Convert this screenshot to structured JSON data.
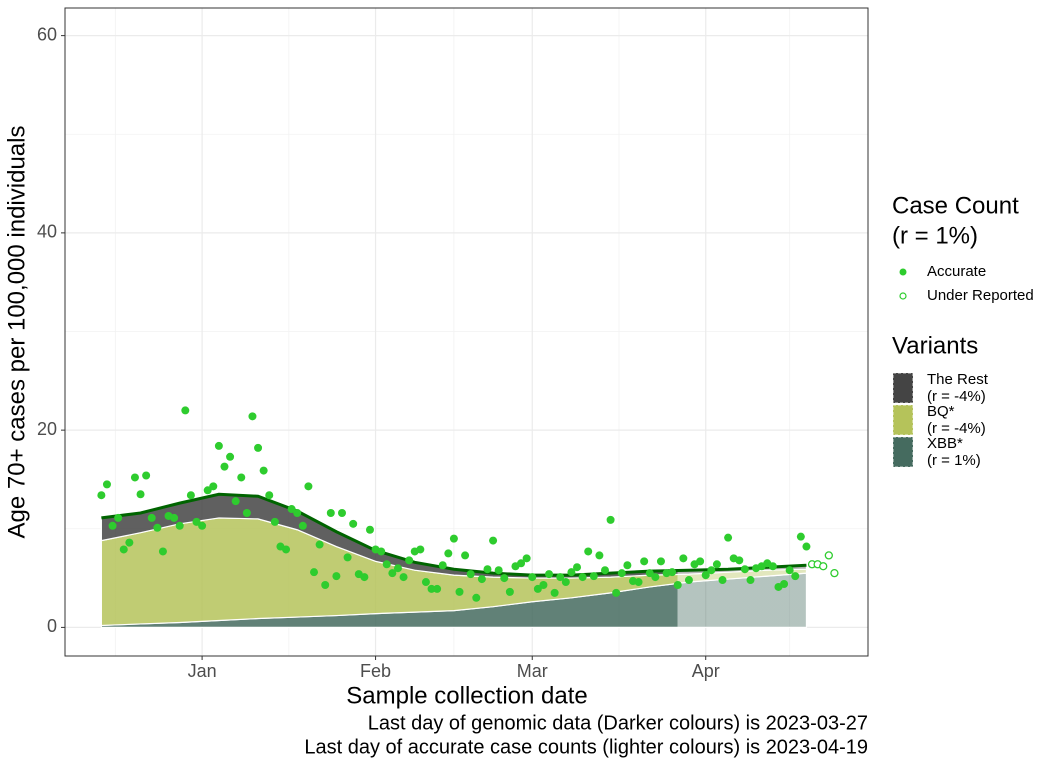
{
  "chart_data": {
    "type": "area",
    "x_label": "Sample collection date",
    "y_label": "Age 70+ cases per 100,000 individuals",
    "captions": [
      "Last day of genomic data (Darker colours) is 2023-03-27",
      "Last day of accurate case counts (lighter colours) is 2023-04-19"
    ],
    "xlim": [
      -24.5,
      119
    ],
    "ylim": [
      -2.9,
      62.8
    ],
    "xticks": [
      {
        "value": 0,
        "label": "Jan"
      },
      {
        "value": 31,
        "label": "Feb"
      },
      {
        "value": 59,
        "label": "Mar"
      },
      {
        "value": 90,
        "label": "Apr"
      }
    ],
    "x_minor_ticks": [
      -15.5,
      15.5,
      45,
      74.5,
      105
    ],
    "yticks": [
      0,
      20,
      40,
      60
    ],
    "y_minor_ticks": [
      10,
      30,
      50
    ],
    "grid": true,
    "areas": {
      "legend_title": "Variants",
      "shade_after": 85,
      "x": [
        -18,
        -11,
        -4,
        3,
        10,
        17,
        24,
        31,
        38,
        45,
        52,
        59,
        66,
        73,
        80,
        87,
        94,
        101,
        108
      ],
      "series": [
        {
          "name": "XBB*",
          "note": "(r = 1%)",
          "color": "#456b5f",
          "values": [
            0.2,
            0.35,
            0.5,
            0.7,
            0.9,
            1.05,
            1.2,
            1.4,
            1.55,
            1.7,
            2.1,
            2.6,
            3.0,
            3.5,
            4.1,
            4.6,
            4.9,
            5.2,
            5.5
          ]
        },
        {
          "name": "BQ*",
          "note": "(r = -4%)",
          "color": "#b5c35a",
          "values": [
            8.6,
            9.25,
            10.0,
            10.4,
            10.1,
            8.85,
            7.0,
            5.3,
            4.25,
            3.6,
            3.0,
            2.4,
            2.0,
            1.6,
            1.2,
            0.8,
            0.7,
            0.6,
            0.4
          ]
        },
        {
          "name": "The Rest",
          "note": "(r = -4%)",
          "color": "#444444",
          "values": [
            2.3,
            2.0,
            2.1,
            2.4,
            2.3,
            1.9,
            1.5,
            1.1,
            0.8,
            0.6,
            0.4,
            0.3,
            0.3,
            0.4,
            0.4,
            0.4,
            0.3,
            0.3,
            0.4
          ]
        }
      ]
    },
    "line": {
      "color": "#006400",
      "values": [
        11.1,
        11.6,
        12.6,
        13.5,
        13.3,
        11.8,
        9.7,
        7.8,
        6.6,
        5.9,
        5.5,
        5.3,
        5.3,
        5.5,
        5.7,
        5.8,
        5.9,
        6.1,
        6.3
      ]
    },
    "points": {
      "legend_title": [
        "Case Count",
        "(r = 1%)"
      ],
      "series": [
        {
          "name": "Accurate",
          "color": "#2ecc2e",
          "filled": true,
          "x": [
            -18,
            -17,
            -16,
            -15,
            -14,
            -13,
            -12,
            -11,
            -10,
            -9,
            -8,
            -7,
            -6,
            -5,
            -4,
            -3,
            -2,
            -1,
            0,
            1,
            2,
            3,
            4,
            5,
            6,
            7,
            8,
            9,
            10,
            11,
            12,
            13,
            14,
            15,
            16,
            17,
            18,
            19,
            20,
            21,
            22,
            23,
            24,
            25,
            26,
            27,
            28,
            29,
            30,
            31,
            32,
            33,
            34,
            35,
            36,
            37,
            38,
            39,
            40,
            41,
            42,
            43,
            44,
            45,
            46,
            47,
            48,
            49,
            50,
            51,
            52,
            53,
            54,
            55,
            56,
            57,
            58,
            59,
            60,
            61,
            62,
            63,
            64,
            65,
            66,
            67,
            68,
            69,
            70,
            71,
            72,
            73,
            74,
            75,
            76,
            77,
            78,
            79,
            80,
            81,
            82,
            83,
            84,
            85,
            86,
            87,
            88,
            89,
            90,
            91,
            92,
            93,
            94,
            95,
            96,
            97,
            98,
            99,
            100,
            101,
            102,
            103,
            104,
            105,
            106,
            107,
            108
          ],
          "values": [
            13.4,
            14.5,
            10.3,
            11.1,
            7.9,
            8.6,
            15.2,
            13.5,
            15.4,
            11.1,
            10.1,
            7.7,
            11.3,
            11.1,
            10.3,
            22.0,
            13.4,
            10.7,
            10.3,
            13.9,
            14.3,
            18.4,
            16.3,
            17.3,
            12.8,
            15.2,
            11.6,
            21.4,
            18.2,
            15.9,
            13.4,
            10.7,
            8.2,
            7.9,
            12.0,
            11.6,
            10.3,
            14.3,
            5.6,
            8.4,
            4.3,
            11.6,
            5.2,
            11.6,
            7.1,
            10.5,
            5.4,
            5.1,
            9.9,
            7.9,
            7.7,
            6.4,
            5.5,
            6.0,
            5.1,
            6.8,
            7.7,
            7.9,
            4.6,
            3.9,
            3.9,
            6.3,
            7.5,
            9.0,
            3.6,
            7.3,
            5.4,
            3.0,
            4.9,
            5.9,
            8.8,
            5.8,
            5.0,
            3.6,
            6.2,
            6.5,
            7.0,
            5.1,
            3.9,
            4.3,
            5.4,
            3.5,
            5.1,
            4.6,
            5.6,
            6.1,
            5.1,
            7.7,
            5.2,
            7.3,
            5.8,
            10.9,
            3.5,
            5.5,
            6.3,
            4.7,
            4.6,
            6.7,
            5.5,
            5.1,
            6.7,
            5.5,
            5.6,
            4.3,
            7.0,
            4.8,
            6.4,
            6.7,
            5.3,
            5.8,
            6.4,
            4.8,
            9.1,
            7.0,
            6.8,
            5.9,
            4.8,
            6.0,
            6.2,
            6.5,
            6.2,
            4.1,
            4.4,
            5.8,
            5.2,
            9.2,
            8.2
          ]
        },
        {
          "name": "Under Reported",
          "color": "#2ecc2e",
          "filled": false,
          "x": [
            109,
            110,
            111,
            112,
            113
          ],
          "values": [
            6.4,
            6.4,
            6.2,
            7.3,
            5.5
          ]
        }
      ]
    }
  }
}
